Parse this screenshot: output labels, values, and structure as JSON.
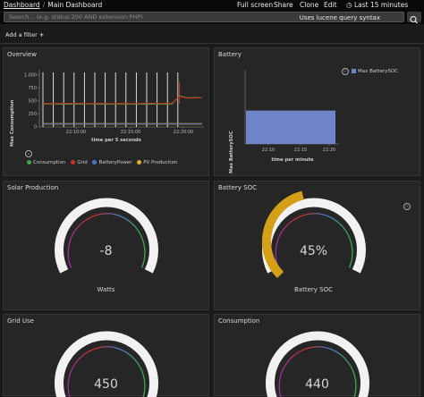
{
  "topbar": {
    "breadcrumb": [
      "Dashboard",
      "Main Dashboard"
    ],
    "separator": "/",
    "nav": [
      "Full screen",
      "Share",
      "Clone",
      "Edit"
    ],
    "time_range": "Last 15 minutes"
  },
  "search": {
    "placeholder": "Search... (e.g. status:200 AND extension:PHP)",
    "hint": "Uses lucene query syntax"
  },
  "filter": {
    "add_label": "Add a filter"
  },
  "colors": {
    "consumption": "#3aa84a",
    "grid": "#c8331f",
    "battery_power": "#4f74c9",
    "pv_production": "#e6b422",
    "gauge_track": "#f2f2f2",
    "battery_bar": "#6f84c9",
    "battery_soc_fill": "#d4a017"
  },
  "panels": {
    "overview": {
      "title": "Overview",
      "ylabel": "Max Consumption",
      "xlabel": "time per 5 seconds",
      "legend": [
        "Consumption",
        "Grid",
        "BatteryPower",
        "PV Production"
      ]
    },
    "battery": {
      "title": "Battery",
      "ylabel": "Max BatterySOC",
      "xlabel": "time per minute",
      "legend": [
        "Max BatterySOC"
      ]
    },
    "solar": {
      "title": "Solar Production",
      "value": "-8",
      "label": "Watts"
    },
    "battery_soc": {
      "title": "Battery SOC",
      "value": "45%",
      "label": "Battery SOC",
      "fraction": 0.45
    },
    "grid_use": {
      "title": "Grid Use",
      "value": "450",
      "label": ""
    },
    "consumption": {
      "title": "Consumption",
      "value": "440",
      "label": ""
    }
  },
  "chart_data": [
    {
      "type": "line",
      "title": "Overview",
      "xlabel": "time per 5 seconds",
      "ylabel": "Max Consumption",
      "x_ticks": [
        "22:10:00",
        "22:15:00",
        "22:20:00"
      ],
      "y_ticks": [
        0,
        250,
        500,
        750,
        1000
      ],
      "ylim": [
        0,
        1100
      ],
      "grid": true,
      "legend_position": "bottom",
      "series": [
        {
          "name": "Consumption",
          "values": [
            440,
            445,
            440,
            438,
            442,
            440,
            445,
            440,
            436,
            440,
            442,
            440,
            438,
            440,
            442,
            440,
            438,
            440,
            600,
            560,
            565,
            560
          ]
        },
        {
          "name": "Grid",
          "values": [
            450,
            452,
            448,
            455,
            450,
            452,
            448,
            451,
            450,
            449,
            452,
            450,
            448,
            450,
            455,
            450,
            452,
            450,
            590,
            555,
            560,
            558
          ]
        },
        {
          "name": "BatteryPower",
          "values": [
            60,
            60,
            60,
            60,
            60,
            60,
            60,
            60,
            60,
            60,
            60,
            60,
            60,
            60,
            60,
            60,
            60,
            60,
            60,
            60,
            60,
            60
          ]
        },
        {
          "name": "PV Production",
          "values": [
            -8,
            -8,
            -8,
            -8,
            -8,
            -8,
            -8,
            -8,
            -8,
            -8,
            -8,
            -8,
            -8,
            -8,
            -8,
            -8,
            -8,
            -8,
            -8,
            -8,
            -8,
            -8
          ]
        }
      ]
    },
    {
      "type": "bar",
      "title": "Battery",
      "xlabel": "time per minute",
      "ylabel": "Max BatterySOC",
      "x_ticks": [
        "22:10",
        "22:15",
        "22:20"
      ],
      "ylim": [
        0,
        100
      ],
      "legend_position": "top-right",
      "series": [
        {
          "name": "Max BatterySOC",
          "values": [
            45
          ]
        }
      ]
    }
  ]
}
